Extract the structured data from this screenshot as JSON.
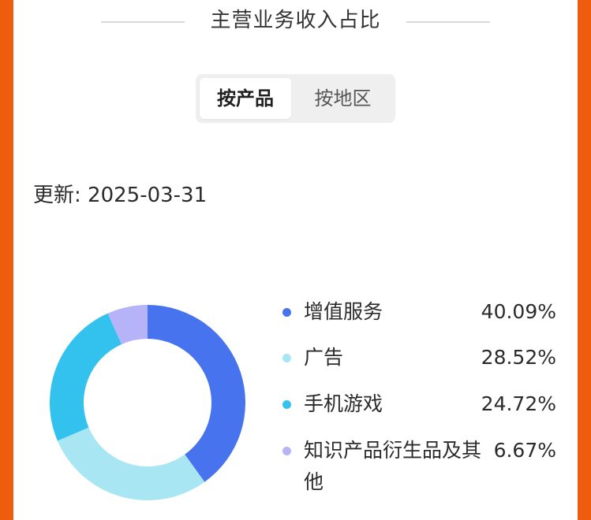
{
  "section": {
    "title": "主营业务收入占比"
  },
  "tabs": {
    "by_product": "按产品",
    "by_region": "按地区",
    "selected": "按产品"
  },
  "update": {
    "text": "更新: 2025-03-31"
  },
  "chart_data": {
    "type": "pie",
    "donut": true,
    "categories": [
      "增值服务",
      "广告",
      "手机游戏",
      "知识产品衍生品及其他"
    ],
    "values": [
      40.09,
      28.52,
      24.72,
      6.67
    ],
    "value_labels": [
      "40.09%",
      "28.52%",
      "24.72%",
      "6.67%"
    ],
    "colors": [
      "#4774ee",
      "#a8e6f3",
      "#33c1ee",
      "#b7b3f9"
    ],
    "legend_position": "right"
  }
}
